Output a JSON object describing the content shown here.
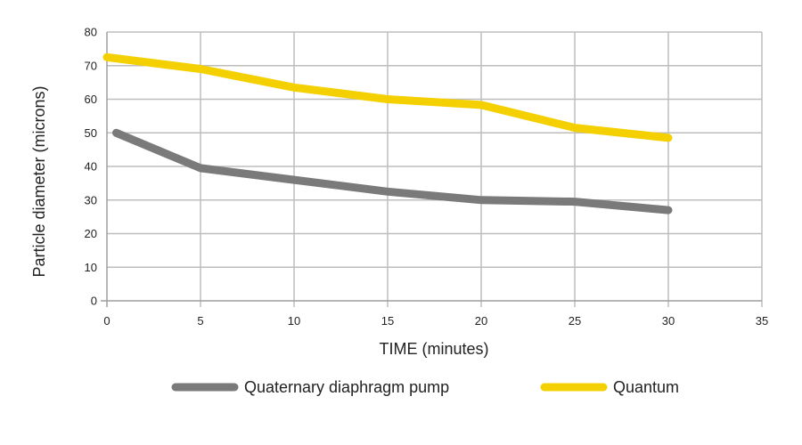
{
  "chart_data": {
    "type": "line",
    "xlabel": "TIME (minutes)",
    "ylabel": "Particle diameter (microns)",
    "xlim": [
      0,
      35
    ],
    "ylim": [
      0,
      80
    ],
    "xticks": [
      0,
      5,
      10,
      15,
      20,
      25,
      30,
      35
    ],
    "yticks": [
      0,
      10,
      20,
      30,
      40,
      50,
      60,
      70,
      80
    ],
    "grid": true,
    "legend_position": "bottom",
    "series": [
      {
        "name": "Quaternary diaphragm pump",
        "color": "#7a7a7a",
        "points": [
          [
            0.5,
            50
          ],
          [
            5,
            39.5
          ],
          [
            10,
            36
          ],
          [
            15,
            32.5
          ],
          [
            20,
            30
          ],
          [
            25,
            29.5
          ],
          [
            30,
            27
          ]
        ]
      },
      {
        "name": "Quantum",
        "color": "#f5d000",
        "points": [
          [
            0,
            72.5
          ],
          [
            5,
            69
          ],
          [
            10,
            63.5
          ],
          [
            15,
            60
          ],
          [
            20,
            58.3
          ],
          [
            25,
            51.5
          ],
          [
            30,
            48.5
          ]
        ]
      }
    ]
  }
}
